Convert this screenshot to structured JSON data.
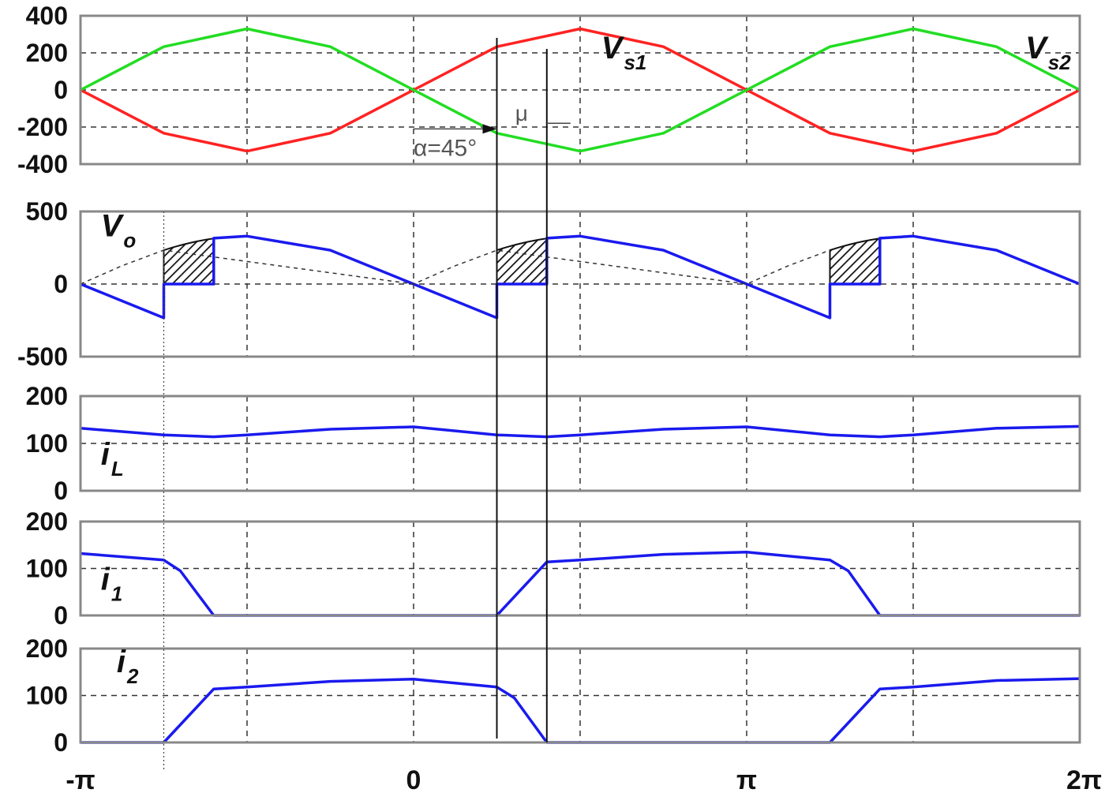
{
  "x_axis": {
    "range": [
      -3.14159265,
      6.28318531
    ],
    "ticks": [
      {
        "label": "-π",
        "value": -3.14159265
      },
      {
        "label": "0",
        "value": 0
      },
      {
        "label": "π",
        "value": 3.14159265
      },
      {
        "label": "2π",
        "value": 6.28318531
      }
    ],
    "vertical_grid": [
      -1.5708,
      0,
      1.5708,
      3.1416,
      4.7124
    ]
  },
  "annotations": {
    "alpha_label": "α=45°",
    "mu_label": "μ",
    "alpha_angle": 0.7854,
    "mu_angle": 0.4712
  },
  "colors": {
    "vs1": "#ff2222",
    "vs2": "#22dd22",
    "blue": "#1a1aee",
    "grid": "#333333",
    "frame": "#888888"
  },
  "chart_data": [
    {
      "type": "line",
      "panel": "supply-voltages",
      "ylim": [
        -400,
        400
      ],
      "yticks": [
        "400",
        "200",
        "0",
        "-200",
        "-400"
      ],
      "ytick_values": [
        400,
        200,
        0,
        -200,
        -400
      ],
      "grid": true,
      "labels": [
        {
          "main": "V",
          "sub": "s1",
          "x": 1.77,
          "y": 170
        },
        {
          "main": "V",
          "sub": "s2",
          "x": 5.77,
          "y": 170
        }
      ],
      "series": [
        {
          "name": "Vs1",
          "color_key": "vs1",
          "x": [
            -3.1416,
            -2.3562,
            -1.5708,
            -0.7854,
            0,
            0.7854,
            1.5708,
            2.3562,
            3.1416,
            3.927,
            4.7124,
            5.4978,
            6.2832
          ],
          "y": [
            0,
            -233,
            -330,
            -233,
            0,
            233,
            330,
            233,
            0,
            -233,
            -330,
            -233,
            0
          ]
        },
        {
          "name": "Vs2",
          "color_key": "vs2",
          "x": [
            -3.1416,
            -2.3562,
            -1.5708,
            -0.7854,
            0,
            0.7854,
            1.5708,
            2.3562,
            3.1416,
            3.927,
            4.7124,
            5.4978,
            6.2832
          ],
          "y": [
            0,
            233,
            330,
            233,
            0,
            -233,
            -330,
            -233,
            0,
            233,
            330,
            233,
            0
          ]
        }
      ]
    },
    {
      "type": "line",
      "panel": "output-voltage",
      "ylim": [
        -500,
        500
      ],
      "yticks": [
        "500",
        "0",
        "-500"
      ],
      "ytick_values": [
        500,
        0,
        -500
      ],
      "grid": true,
      "labels": [
        {
          "main": "V",
          "sub": "o",
          "x": -2.95,
          "y": 330
        }
      ],
      "hatched_commutation_periods": [
        [
          -2.3562,
          -1.885
        ],
        [
          0.7854,
          1.2566
        ],
        [
          3.927,
          4.3982
        ]
      ],
      "series": [
        {
          "name": "Vo",
          "color_key": "blue",
          "x": [
            -3.1416,
            -2.3562,
            -2.3562,
            -1.885,
            -1.885,
            -1.5708,
            -0.7854,
            0,
            0.7854,
            0.7854,
            1.2566,
            1.2566,
            1.5708,
            2.3562,
            3.1416,
            3.927,
            3.927,
            4.3982,
            4.3982,
            4.7124,
            5.4978,
            6.2832
          ],
          "y": [
            0,
            -233,
            0,
            0,
            316,
            330,
            233,
            0,
            -233,
            0,
            0,
            316,
            330,
            233,
            0,
            -233,
            0,
            0,
            316,
            330,
            233,
            0
          ]
        },
        {
          "name": "Vo-dashed",
          "color_key": "grid",
          "dashed": true,
          "x": [
            -3.1416,
            -2.7489,
            -2.3562,
            -0.0,
            0.3927,
            0.7854,
            3.1416,
            3.5343,
            3.927
          ],
          "y": [
            0,
            126,
            233,
            0,
            126,
            233,
            0,
            126,
            233
          ]
        }
      ]
    },
    {
      "type": "line",
      "panel": "load-current",
      "ylim": [
        0,
        200
      ],
      "yticks": [
        "200",
        "100",
        "0"
      ],
      "ytick_values": [
        200,
        100,
        0
      ],
      "grid": true,
      "labels": [
        {
          "main": "i",
          "sub": "L",
          "x": -2.95,
          "y": 55
        }
      ],
      "series": [
        {
          "name": "iL",
          "color_key": "blue",
          "x": [
            -3.1416,
            -2.3562,
            -1.885,
            -1.5708,
            -0.7854,
            0,
            0.7854,
            1.2566,
            1.5708,
            2.3562,
            3.1416,
            3.927,
            4.3982,
            4.7124,
            5.4978,
            6.2832
          ],
          "y": [
            132,
            118,
            114,
            118,
            130,
            135,
            118,
            114,
            118,
            130,
            135,
            118,
            114,
            118,
            132,
            136
          ]
        }
      ]
    },
    {
      "type": "line",
      "panel": "thyristor-1-current",
      "ylim": [
        0,
        200
      ],
      "yticks": [
        "200",
        "100",
        "0"
      ],
      "ytick_values": [
        200,
        100,
        0
      ],
      "grid": true,
      "labels": [
        {
          "main": "i",
          "sub": "1",
          "x": -2.95,
          "y": 55
        }
      ],
      "series": [
        {
          "name": "i1",
          "color_key": "blue",
          "x": [
            -3.1416,
            -2.3562,
            -2.2,
            -1.885,
            0,
            0.7854,
            1.2566,
            1.5708,
            2.3562,
            3.1416,
            3.927,
            4.1,
            4.3982,
            6.2832
          ],
          "y": [
            132,
            118,
            95,
            0,
            0,
            0,
            114,
            118,
            130,
            135,
            118,
            95,
            0,
            0
          ]
        }
      ]
    },
    {
      "type": "line",
      "panel": "thyristor-2-current",
      "ylim": [
        0,
        200
      ],
      "yticks": [
        "200",
        "100",
        "0"
      ],
      "ytick_values": [
        200,
        100,
        0
      ],
      "grid": true,
      "labels": [
        {
          "main": "i",
          "sub": "2",
          "x": -2.8,
          "y": 150
        }
      ],
      "series": [
        {
          "name": "i2",
          "color_key": "blue",
          "x": [
            -3.1416,
            -2.3562,
            -1.885,
            -1.5708,
            -0.7854,
            0,
            0.7854,
            0.95,
            1.2566,
            3.1416,
            3.927,
            4.3982,
            4.7124,
            5.4978,
            6.2832
          ],
          "y": [
            0,
            0,
            114,
            118,
            130,
            135,
            118,
            95,
            0,
            0,
            0,
            114,
            118,
            132,
            136
          ]
        }
      ]
    }
  ]
}
